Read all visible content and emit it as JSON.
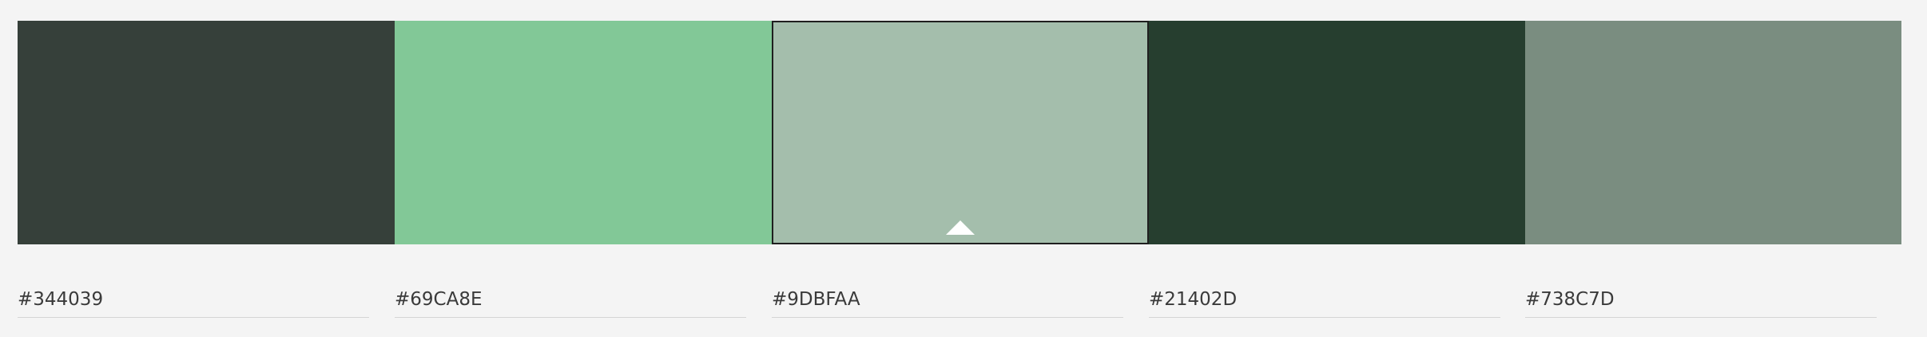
{
  "swatches": [
    {
      "color": "#344039",
      "hex": "#344039",
      "selected": false
    },
    {
      "color": "#69CA8E",
      "hex": "#69CA8E",
      "selected": false
    },
    {
      "color": "#9DBFAA",
      "hex": "#9DBFAA",
      "selected": true
    },
    {
      "color": "#21402D",
      "hex": "#21402D",
      "selected": false
    },
    {
      "color": "#738C7D",
      "hex": "#738C7D",
      "selected": false
    }
  ],
  "display_colors": [
    "#36403a",
    "#82c897",
    "#a4beac",
    "#263e2f",
    "#7a8d80"
  ],
  "selected_index": 2,
  "caret_icon": "triangle-up-icon"
}
